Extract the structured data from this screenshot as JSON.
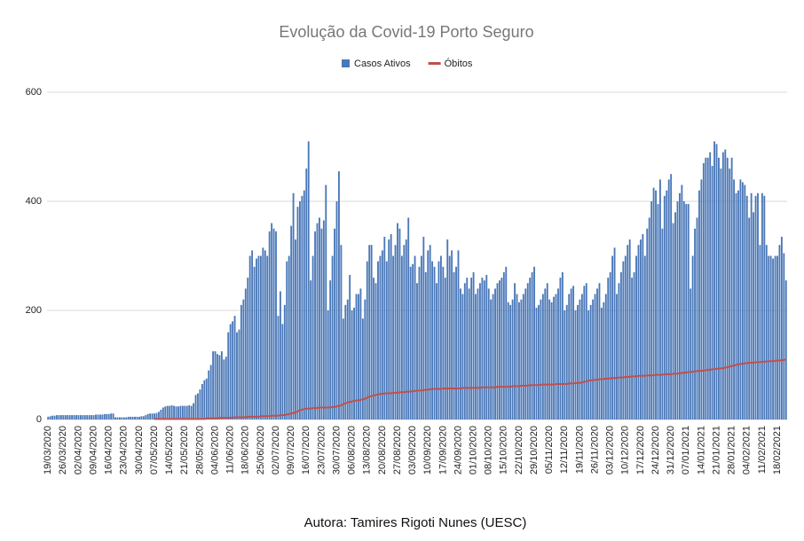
{
  "chart_data": {
    "type": "bar_line",
    "title": "Evolução da Covid-19 Porto Seguro",
    "categories": [
      "19/03/2020",
      null,
      null,
      null,
      null,
      null,
      null,
      "26/03/2020",
      null,
      null,
      null,
      null,
      null,
      null,
      "02/04/2020",
      null,
      null,
      null,
      null,
      null,
      null,
      "09/04/2020",
      null,
      null,
      null,
      null,
      null,
      null,
      "16/04/2020",
      null,
      null,
      null,
      null,
      null,
      null,
      "23/04/2020",
      null,
      null,
      null,
      null,
      null,
      null,
      "30/04/2020",
      null,
      null,
      null,
      null,
      null,
      null,
      "07/05/2020",
      null,
      null,
      null,
      null,
      null,
      null,
      "14/05/2020",
      null,
      null,
      null,
      null,
      null,
      null,
      "21/05/2020",
      null,
      null,
      null,
      null,
      null,
      null,
      "28/05/2020",
      null,
      null,
      null,
      null,
      null,
      null,
      "04/06/2020",
      null,
      null,
      null,
      null,
      null,
      null,
      "11/06/2020",
      null,
      null,
      null,
      null,
      null,
      null,
      "18/06/2020",
      null,
      null,
      null,
      null,
      null,
      null,
      "25/06/2020",
      null,
      null,
      null,
      null,
      null,
      null,
      "02/07/2020",
      null,
      null,
      null,
      null,
      null,
      null,
      "09/07/2020",
      null,
      null,
      null,
      null,
      null,
      null,
      "16/07/2020",
      null,
      null,
      null,
      null,
      null,
      null,
      "23/07/2020",
      null,
      null,
      null,
      null,
      null,
      null,
      "30/07/2020",
      null,
      null,
      null,
      null,
      null,
      null,
      "06/08/2020",
      null,
      null,
      null,
      null,
      null,
      null,
      "13/08/2020",
      null,
      null,
      null,
      null,
      null,
      null,
      "20/08/2020",
      null,
      null,
      null,
      null,
      null,
      null,
      "27/08/2020",
      null,
      null,
      null,
      null,
      null,
      null,
      "03/09/2020",
      null,
      null,
      null,
      null,
      null,
      null,
      "10/09/2020",
      null,
      null,
      null,
      null,
      null,
      null,
      "17/09/2020",
      null,
      null,
      null,
      null,
      null,
      null,
      "24/09/2020",
      null,
      null,
      null,
      null,
      null,
      null,
      "01/10/2020",
      null,
      null,
      null,
      null,
      null,
      null,
      "08/10/2020",
      null,
      null,
      null,
      null,
      null,
      null,
      "15/10/2020",
      null,
      null,
      null,
      null,
      null,
      null,
      "22/10/2020",
      null,
      null,
      null,
      null,
      null,
      null,
      "29/10/2020",
      null,
      null,
      null,
      null,
      null,
      null,
      "05/11/2020",
      null,
      null,
      null,
      null,
      null,
      null,
      "12/11/2020",
      null,
      null,
      null,
      null,
      null,
      null,
      "19/11/2020",
      null,
      null,
      null,
      null,
      null,
      null,
      "26/11/2020",
      null,
      null,
      null,
      null,
      null,
      null,
      "03/12/2020",
      null,
      null,
      null,
      null,
      null,
      null,
      "10/12/2020",
      null,
      null,
      null,
      null,
      null,
      null,
      "17/12/2020",
      null,
      null,
      null,
      null,
      null,
      null,
      "24/12/2020",
      null,
      null,
      null,
      null,
      null,
      null,
      "31/12/2020",
      null,
      null,
      null,
      null,
      null,
      null,
      "07/01/2021",
      null,
      null,
      null,
      null,
      null,
      null,
      "14/01/2021",
      null,
      null,
      null,
      null,
      null,
      null,
      "21/01/2021",
      null,
      null,
      null,
      null,
      null,
      null,
      "28/01/2021",
      null,
      null,
      null,
      null,
      null,
      null,
      "04/02/2021",
      null,
      null,
      null,
      null,
      null,
      null,
      "11/02/2021",
      null,
      null,
      null,
      null,
      null,
      null,
      "18/02/2021",
      null,
      null,
      null,
      null
    ],
    "series": [
      {
        "name": "Casos Ativos",
        "kind": "bar",
        "color": "#4a78b8",
        "values": [
          5,
          6,
          7,
          7,
          8,
          8,
          8,
          8,
          8,
          8,
          8,
          8,
          8,
          8,
          8,
          8,
          8,
          8,
          8,
          8,
          8,
          8,
          9,
          9,
          9,
          9,
          10,
          10,
          10,
          11,
          11,
          4,
          4,
          4,
          4,
          4,
          4,
          5,
          5,
          5,
          5,
          5,
          5,
          6,
          6,
          8,
          10,
          11,
          11,
          11,
          12,
          14,
          18,
          22,
          24,
          25,
          25,
          26,
          25,
          24,
          24,
          25,
          25,
          25,
          25,
          26,
          25,
          30,
          45,
          48,
          55,
          65,
          72,
          75,
          90,
          100,
          125,
          125,
          120,
          118,
          125,
          110,
          115,
          160,
          175,
          180,
          190,
          160,
          165,
          210,
          220,
          240,
          260,
          300,
          310,
          280,
          295,
          300,
          300,
          315,
          310,
          300,
          345,
          360,
          350,
          345,
          190,
          235,
          175,
          210,
          290,
          300,
          355,
          415,
          330,
          390,
          400,
          410,
          420,
          460,
          510,
          255,
          300,
          345,
          360,
          370,
          350,
          365,
          430,
          200,
          255,
          300,
          350,
          400,
          455,
          320,
          185,
          210,
          220,
          265,
          200,
          205,
          230,
          230,
          240,
          185,
          220,
          290,
          320,
          320,
          260,
          250,
          290,
          300,
          310,
          335,
          290,
          330,
          340,
          300,
          320,
          360,
          350,
          300,
          320,
          330,
          370,
          280,
          285,
          300,
          250,
          280,
          300,
          335,
          270,
          310,
          320,
          290,
          280,
          250,
          290,
          300,
          280,
          260,
          330,
          300,
          310,
          270,
          280,
          310,
          240,
          230,
          250,
          260,
          240,
          260,
          270,
          230,
          240,
          250,
          260,
          255,
          265,
          240,
          220,
          230,
          240,
          250,
          255,
          260,
          270,
          280,
          215,
          210,
          220,
          250,
          230,
          215,
          220,
          230,
          240,
          250,
          260,
          270,
          280,
          205,
          210,
          220,
          230,
          240,
          250,
          220,
          215,
          225,
          230,
          240,
          260,
          270,
          200,
          210,
          230,
          240,
          245,
          200,
          210,
          220,
          230,
          245,
          250,
          200,
          210,
          220,
          230,
          240,
          250,
          205,
          215,
          230,
          260,
          270,
          300,
          315,
          230,
          250,
          270,
          290,
          300,
          320,
          330,
          260,
          270,
          300,
          320,
          330,
          340,
          300,
          350,
          370,
          400,
          425,
          420,
          395,
          440,
          350,
          410,
          420,
          440,
          450,
          360,
          380,
          400,
          415,
          430,
          400,
          395,
          395,
          240,
          300,
          350,
          370,
          420,
          440,
          470,
          480,
          480,
          490,
          465,
          510,
          505,
          480,
          460,
          490,
          495,
          480,
          460,
          480,
          440,
          415,
          420,
          440,
          435,
          430,
          410,
          370,
          415,
          380,
          410,
          415,
          320,
          415,
          410,
          320,
          300,
          300,
          295,
          300,
          300,
          320,
          335,
          305,
          255
        ]
      },
      {
        "name": "Óbitos",
        "kind": "line",
        "color": "#c0504d",
        "values": [
          null,
          null,
          null,
          null,
          null,
          null,
          null,
          null,
          null,
          null,
          null,
          null,
          null,
          null,
          null,
          null,
          null,
          null,
          null,
          null,
          null,
          null,
          null,
          null,
          null,
          null,
          null,
          null,
          null,
          null,
          null,
          null,
          null,
          null,
          null,
          null,
          null,
          null,
          null,
          null,
          null,
          null,
          null,
          null,
          null,
          null,
          null,
          null,
          null,
          1,
          1,
          1,
          1,
          1,
          1,
          1,
          1,
          1,
          1,
          1,
          1,
          1,
          1,
          1,
          1,
          1,
          1,
          1,
          1,
          1,
          1,
          1,
          1,
          2,
          2,
          2,
          2,
          2,
          2,
          3,
          3,
          3,
          3,
          3,
          3,
          3,
          4,
          4,
          4,
          4,
          4,
          4,
          5,
          5,
          5,
          5,
          5,
          5,
          6,
          6,
          6,
          6,
          6,
          7,
          7,
          7,
          7,
          8,
          8,
          8,
          9,
          10,
          11,
          12,
          13,
          15,
          17,
          18,
          19,
          20,
          20,
          20,
          21,
          21,
          21,
          22,
          22,
          22,
          22,
          22,
          22,
          23,
          23,
          24,
          25,
          26,
          28,
          30,
          31,
          32,
          33,
          34,
          35,
          35,
          36,
          37,
          38,
          40,
          42,
          43,
          44,
          45,
          46,
          47,
          47,
          48,
          48,
          48,
          48,
          49,
          49,
          49,
          50,
          50,
          50,
          51,
          51,
          51,
          52,
          52,
          53,
          53,
          53,
          54,
          54,
          55,
          55,
          56,
          56,
          56,
          56,
          56,
          57,
          57,
          57,
          57,
          57,
          57,
          57,
          57,
          57,
          58,
          58,
          58,
          58,
          58,
          58,
          58,
          58,
          58,
          59,
          59,
          59,
          59,
          59,
          59,
          59,
          60,
          60,
          60,
          60,
          60,
          60,
          60,
          61,
          61,
          61,
          61,
          62,
          62,
          62,
          62,
          63,
          63,
          63,
          63,
          63,
          64,
          64,
          64,
          64,
          64,
          64,
          64,
          65,
          65,
          65,
          65,
          65,
          65,
          66,
          66,
          66,
          67,
          67,
          67,
          68,
          69,
          70,
          71,
          72,
          72,
          73,
          73,
          74,
          74,
          74,
          75,
          75,
          75,
          76,
          76,
          76,
          77,
          77,
          77,
          78,
          78,
          78,
          79,
          79,
          79,
          80,
          80,
          80,
          80,
          81,
          81,
          81,
          81,
          82,
          82,
          82,
          82,
          83,
          83,
          83,
          83,
          84,
          84,
          84,
          85,
          85,
          86,
          86,
          87,
          87,
          88,
          88,
          89,
          89,
          89,
          90,
          90,
          91,
          91,
          92,
          92,
          93,
          93,
          94,
          94,
          95,
          96,
          97,
          98,
          99,
          100,
          101,
          102,
          102,
          103,
          103,
          104,
          104,
          104,
          105,
          105,
          105,
          106,
          106,
          106,
          107,
          107,
          107,
          108,
          108,
          108,
          109,
          109,
          110
        ]
      }
    ],
    "ylim": [
      0,
      600
    ],
    "yticks": [
      0,
      200,
      400,
      600
    ],
    "grid": true,
    "legend": "top"
  },
  "caption": "Autora: Tamires Rigoti Nunes (UESC)"
}
